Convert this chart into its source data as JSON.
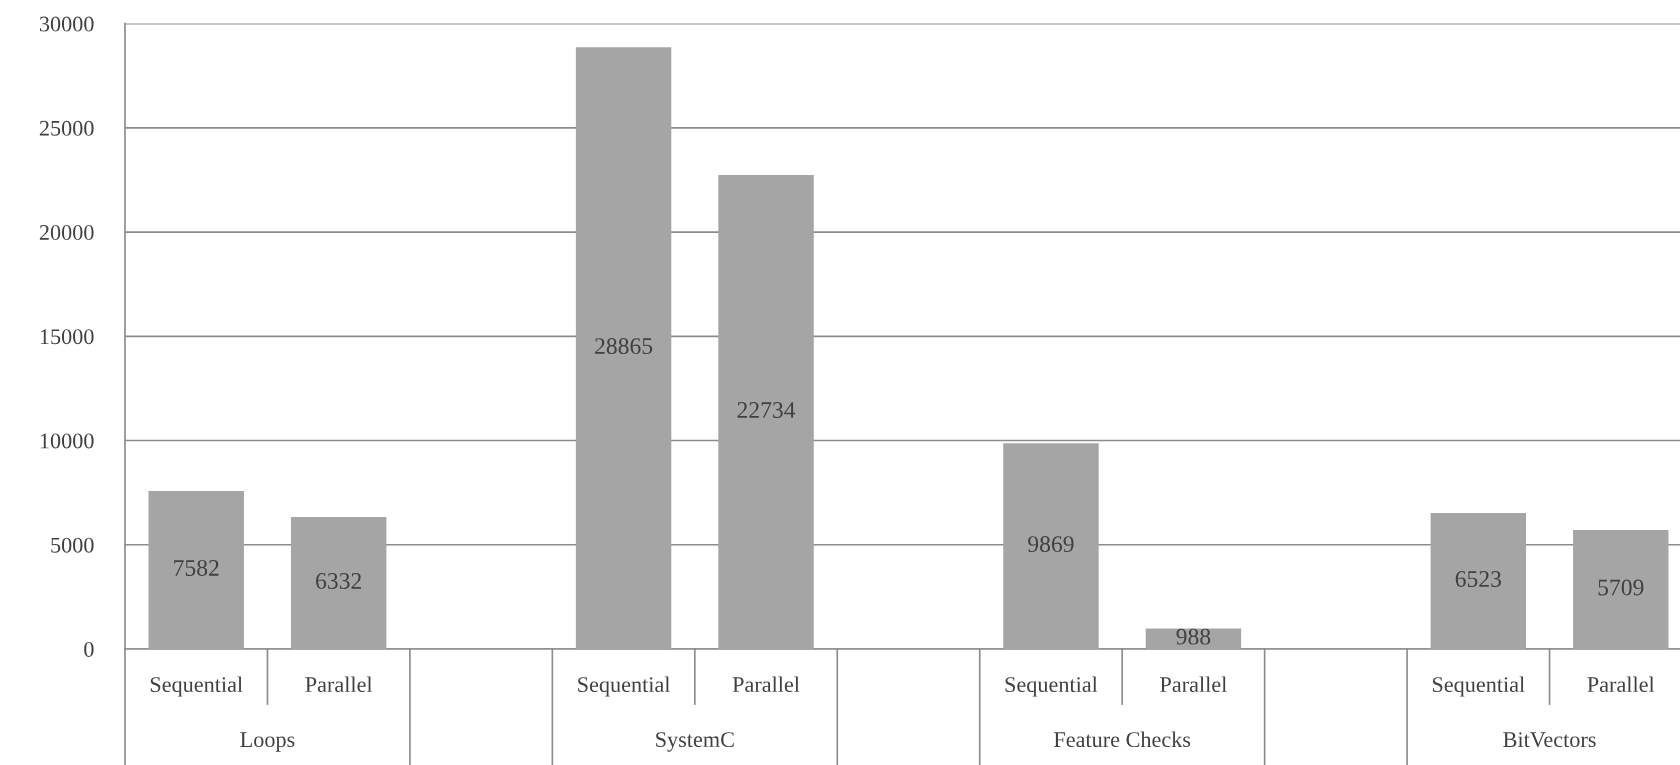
{
  "chart_data": {
    "type": "bar",
    "categories": [
      "Sequential",
      "Parallel",
      null,
      "Sequential",
      "Parallel",
      null,
      "Sequential",
      "Parallel",
      null,
      "Sequential",
      "Parallel"
    ],
    "values": [
      7582,
      6332,
      null,
      28865,
      22734,
      null,
      9869,
      988,
      null,
      6523,
      5709
    ],
    "color": "#a5a5a5",
    "ylim": [
      0,
      30000
    ],
    "yticks": [
      0,
      5000,
      10000,
      15000,
      20000,
      25000,
      30000
    ],
    "grid": "y",
    "data_labels": true,
    "annotations": [
      "Loops",
      "SystemC",
      "Feature Checks",
      "BitVectors"
    ]
  }
}
